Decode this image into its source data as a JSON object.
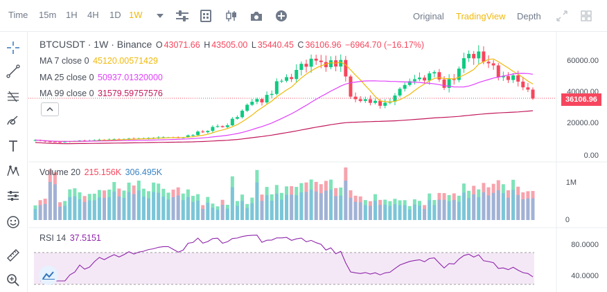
{
  "toolbar": {
    "time_label": "Time",
    "intervals": [
      "15m",
      "1H",
      "4H",
      "1D",
      "1W"
    ],
    "active_interval": "1W",
    "icons": [
      "chevron-down-icon",
      "settings-sliders-icon",
      "indicators-icon",
      "candle-type-icon",
      "camera-icon",
      "add-icon"
    ],
    "views": [
      "Original",
      "TradingView",
      "Depth"
    ],
    "active_view": "TradingView",
    "right_icons": [
      "fullscreen-icon",
      "grid-layout-icon"
    ]
  },
  "left_tools": [
    "crosshair-icon",
    "trend-line-icon",
    "fib-tool-icon",
    "brush-icon",
    "text-icon",
    "pattern-icon",
    "measure-icon",
    "emoji-icon",
    "ruler-icon",
    "zoom-icon"
  ],
  "price_panel": {
    "symbol": "BTCUSDT · 1W · Binance",
    "o_label": "O",
    "o_value": "43071.66",
    "h_label": "H",
    "h_value": "43505.00",
    "l_label": "L",
    "l_value": "35440.45",
    "c_label": "C",
    "c_value": "36106.96",
    "change": "−6964.70 (−16.17%)",
    "ma7_label": "MA 7 close 0",
    "ma7_value": "45120.00571429",
    "ma25_label": "MA 25 close 0",
    "ma25_value": "50937.01320000",
    "ma99_label": "MA 99 close 0",
    "ma99_value": "31579.59757576",
    "last_price": "36106.96",
    "axis_ticks": [
      "60000.00",
      "40000.00",
      "20000.00",
      "0.00"
    ],
    "colors": {
      "up": "#0ecb81",
      "down": "#f6465d",
      "ma7": "#f0b90b",
      "ma25": "#e040fb",
      "ma99": "#c2185b"
    }
  },
  "volume_panel": {
    "label": "Volume 20",
    "value1": "215.156K",
    "value2": "306.495K",
    "axis_ticks": [
      "1M",
      "0"
    ]
  },
  "rsi_panel": {
    "label": "RSI 14",
    "value": "37.5151",
    "axis_ticks": [
      "80.0000",
      "40.0000"
    ]
  },
  "chart_data": {
    "type": "candlestick",
    "price_range": [
      0,
      70000
    ],
    "closes": [
      10200,
      9800,
      9300,
      9100,
      9000,
      8900,
      9200,
      9500,
      9600,
      9900,
      9700,
      9800,
      10100,
      10400,
      10300,
      10500,
      10700,
      10600,
      10800,
      11100,
      11000,
      11200,
      11300,
      11500,
      11600,
      11800,
      11900,
      11900,
      11800,
      11700,
      11900,
      13100,
      13300,
      15500,
      15100,
      15900,
      18400,
      18900,
      18300,
      19400,
      23500,
      24500,
      28500,
      32200,
      34100,
      35800,
      33700,
      38400,
      39000,
      46900,
      47200,
      49500,
      48300,
      54000,
      57800,
      56000,
      61000,
      59800,
      58900,
      55700,
      60000,
      56100,
      60200,
      49900,
      37300,
      35700,
      34600,
      35700,
      33400,
      34700,
      31600,
      33500,
      34200,
      38000,
      42200,
      44600,
      46900,
      48200,
      49200,
      47400,
      51800,
      52600,
      48000,
      42800,
      48200,
      47700,
      54800,
      61300,
      64000,
      61200,
      65500,
      59100,
      58100,
      56800,
      49400,
      50100,
      47700,
      50600,
      46700,
      43100,
      41700,
      36106.96
    ]
  }
}
